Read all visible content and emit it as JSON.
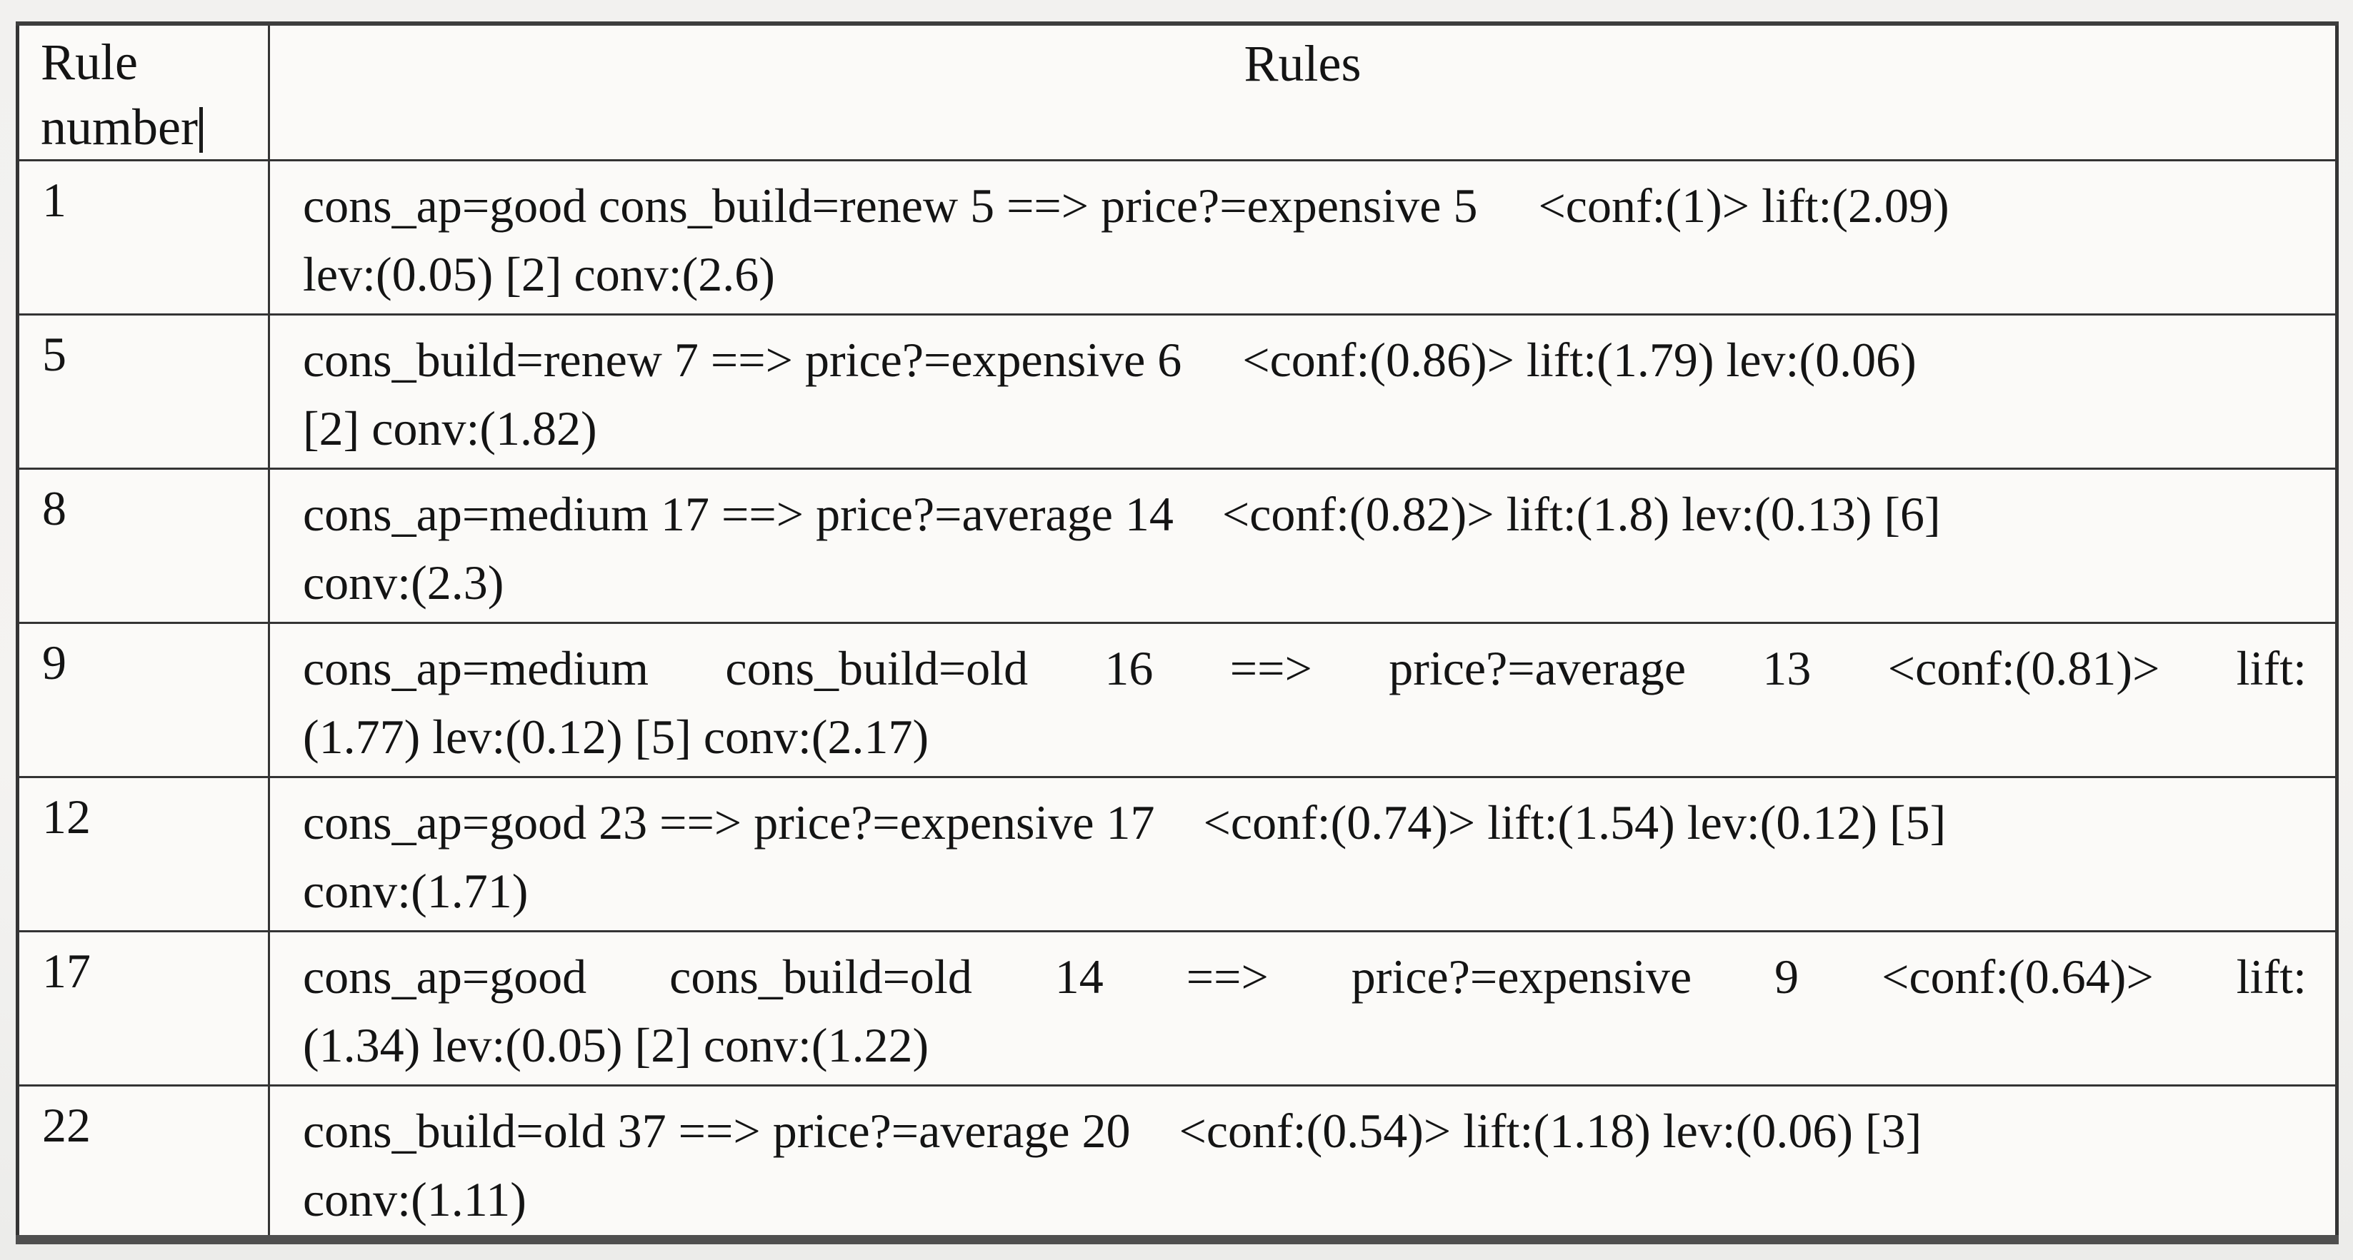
{
  "table": {
    "headers": {
      "rule_number": "Rule number",
      "rules": "Rules"
    },
    "rows": [
      {
        "rule_number": "1",
        "justify": false,
        "lines": [
          "cons_ap=good cons_build=renew 5 ==> price?=expensive 5     <conf:(1)> lift:(2.09)",
          "lev:(0.05) [2] conv:(2.6)"
        ]
      },
      {
        "rule_number": "5",
        "justify": false,
        "lines": [
          "cons_build=renew 7 ==> price?=expensive 6     <conf:(0.86)> lift:(1.79) lev:(0.06)",
          "[2] conv:(1.82)"
        ]
      },
      {
        "rule_number": "8",
        "justify": false,
        "lines": [
          "cons_ap=medium 17 ==> price?=average 14    <conf:(0.82)> lift:(1.8) lev:(0.13) [6]",
          "conv:(2.3)"
        ]
      },
      {
        "rule_number": "9",
        "justify": true,
        "lines": [
          "cons_ap=medium cons_build=old 16 ==> price?=average 13     <conf:(0.81)> lift:",
          "(1.77) lev:(0.12) [5] conv:(2.17)"
        ]
      },
      {
        "rule_number": "12",
        "justify": false,
        "lines": [
          "cons_ap=good 23 ==> price?=expensive 17    <conf:(0.74)> lift:(1.54) lev:(0.12) [5]",
          "conv:(1.71)"
        ]
      },
      {
        "rule_number": "17",
        "justify": true,
        "lines": [
          "cons_ap=good cons_build=old 14 ==> price?=expensive 9      <conf:(0.64)> lift:",
          "(1.34) lev:(0.05) [2] conv:(1.22)"
        ]
      },
      {
        "rule_number": "22",
        "justify": false,
        "lines": [
          "cons_build=old 37 ==> price?=average 20    <conf:(0.54)> lift:(1.18) lev:(0.06) [3]",
          "conv:(1.11)"
        ]
      }
    ]
  }
}
